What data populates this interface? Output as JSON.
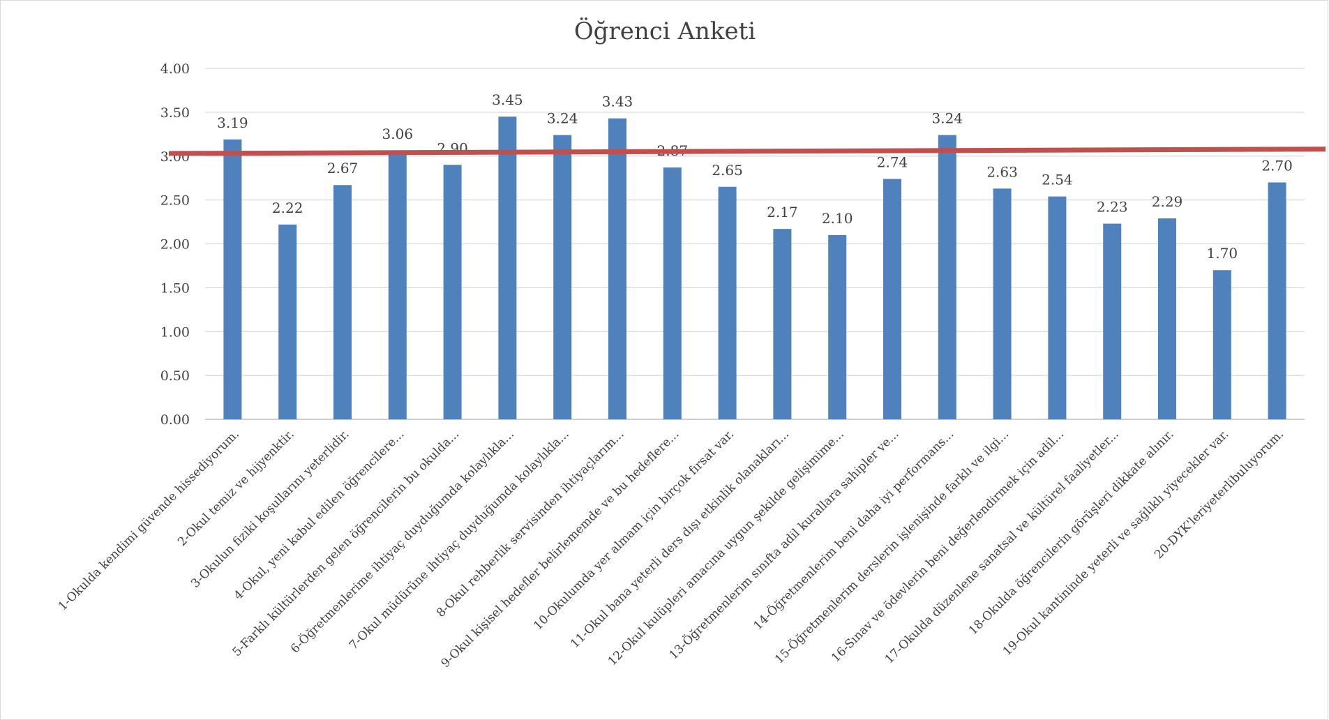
{
  "chart_data": {
    "type": "bar",
    "title": "Öğrenci Anketi",
    "xlabel": "",
    "ylabel": "",
    "ylim": [
      0,
      4
    ],
    "yticks": [
      "0.00",
      "0.50",
      "1.00",
      "1.50",
      "2.00",
      "2.50",
      "3.00",
      "3.50",
      "4.00"
    ],
    "grid": true,
    "legend": "none",
    "categories": [
      "1-Okulda kendimi güvende hissediyorum.",
      "2-Okul temiz ve hijyenktir.",
      "3-Okulun fiziki koşullarını yeterlidir.",
      "4-Okul, yeni kabul edilen öğrencilere...",
      "5-Farklı kültürlerden gelen öğrencilerin bu okulda...",
      "6-Öğretmenlerime ihtiyaç duyduğumda kolaylıkla...",
      "7-Okul müdürüne ihtiyaç duyduğumda kolaylıkla...",
      "8-Okul rehberlik servisinden ihtiyaçlarım...",
      "9-Okul kişisel hedefler belirlememde ve bu hedeflere...",
      "10-Okulumda yer almam için birçok fırsat var.",
      "11-Okul bana yeterli ders dışı etkinlik olanakları...",
      "12-Okul kulüpleri amacına uygun şekilde gelişimime...",
      "13-Öğretmenlerim sınıfta adil kurallara sahipler ve...",
      "14-Öğretmenlerim beni daha iyi performans...",
      "15-Öğretmenlerim derslerin işlenişinde farklı ve ilgi...",
      "16-Sınav ve ödevlerin beni değerlendirmek için adil...",
      "17-Okulda düzenlene sanatsal ve kültürel faaliyetler...",
      "18-Okulda öğrencilerin görüşleri dikkate alınır.",
      "19-Okul kantininde yeterli ve sağlıklı yiyecekler var.",
      "20-DYK'leriyeterlibuluyorum."
    ],
    "values": [
      3.19,
      2.22,
      2.67,
      3.06,
      2.9,
      3.45,
      3.24,
      3.43,
      2.87,
      2.65,
      2.17,
      2.1,
      2.74,
      3.24,
      2.63,
      2.54,
      2.23,
      2.29,
      1.7,
      2.7
    ],
    "data_labels": [
      "3.19",
      "2.22",
      "2.67",
      "3.06",
      "2.90",
      "3.45",
      "3.24",
      "3.43",
      "2.87",
      "2.65",
      "2.17",
      "2.10",
      "2.74",
      "3.24",
      "2.63",
      "2.54",
      "2.23",
      "2.29",
      "1.70",
      "2.70"
    ],
    "bar_color": "#4F81BD",
    "reference_line": {
      "color": "#C0504D",
      "y_start": 3.03,
      "y_end": 3.08
    }
  }
}
